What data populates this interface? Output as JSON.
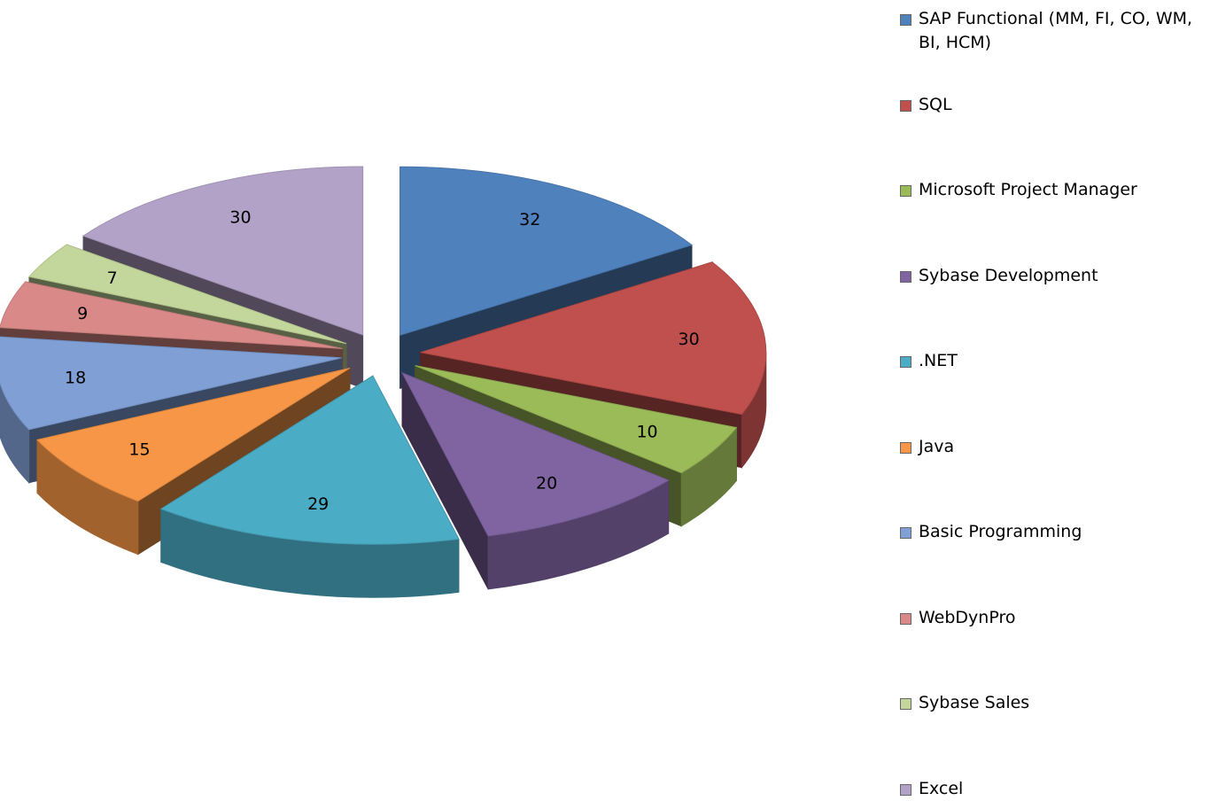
{
  "chart_data": {
    "type": "pie",
    "categories": [
      "SAP Functional (MM, FI, CO, WM, BI, HCM)",
      "SQL",
      "Microsoft Project Manager",
      "Sybase Development",
      ".NET",
      "Java",
      "Basic Programming",
      "WebDynPro",
      "Sybase Sales",
      "Excel"
    ],
    "values": [
      32,
      30,
      10,
      20,
      29,
      15,
      18,
      9,
      7,
      30
    ],
    "colors": [
      "#4f81bd",
      "#c0504d",
      "#9bbb59",
      "#8064a2",
      "#4bacc6",
      "#f79646",
      "#7f9fd5",
      "#d98a88",
      "#c3d69b",
      "#b3a2c7"
    ],
    "legend": "right"
  }
}
